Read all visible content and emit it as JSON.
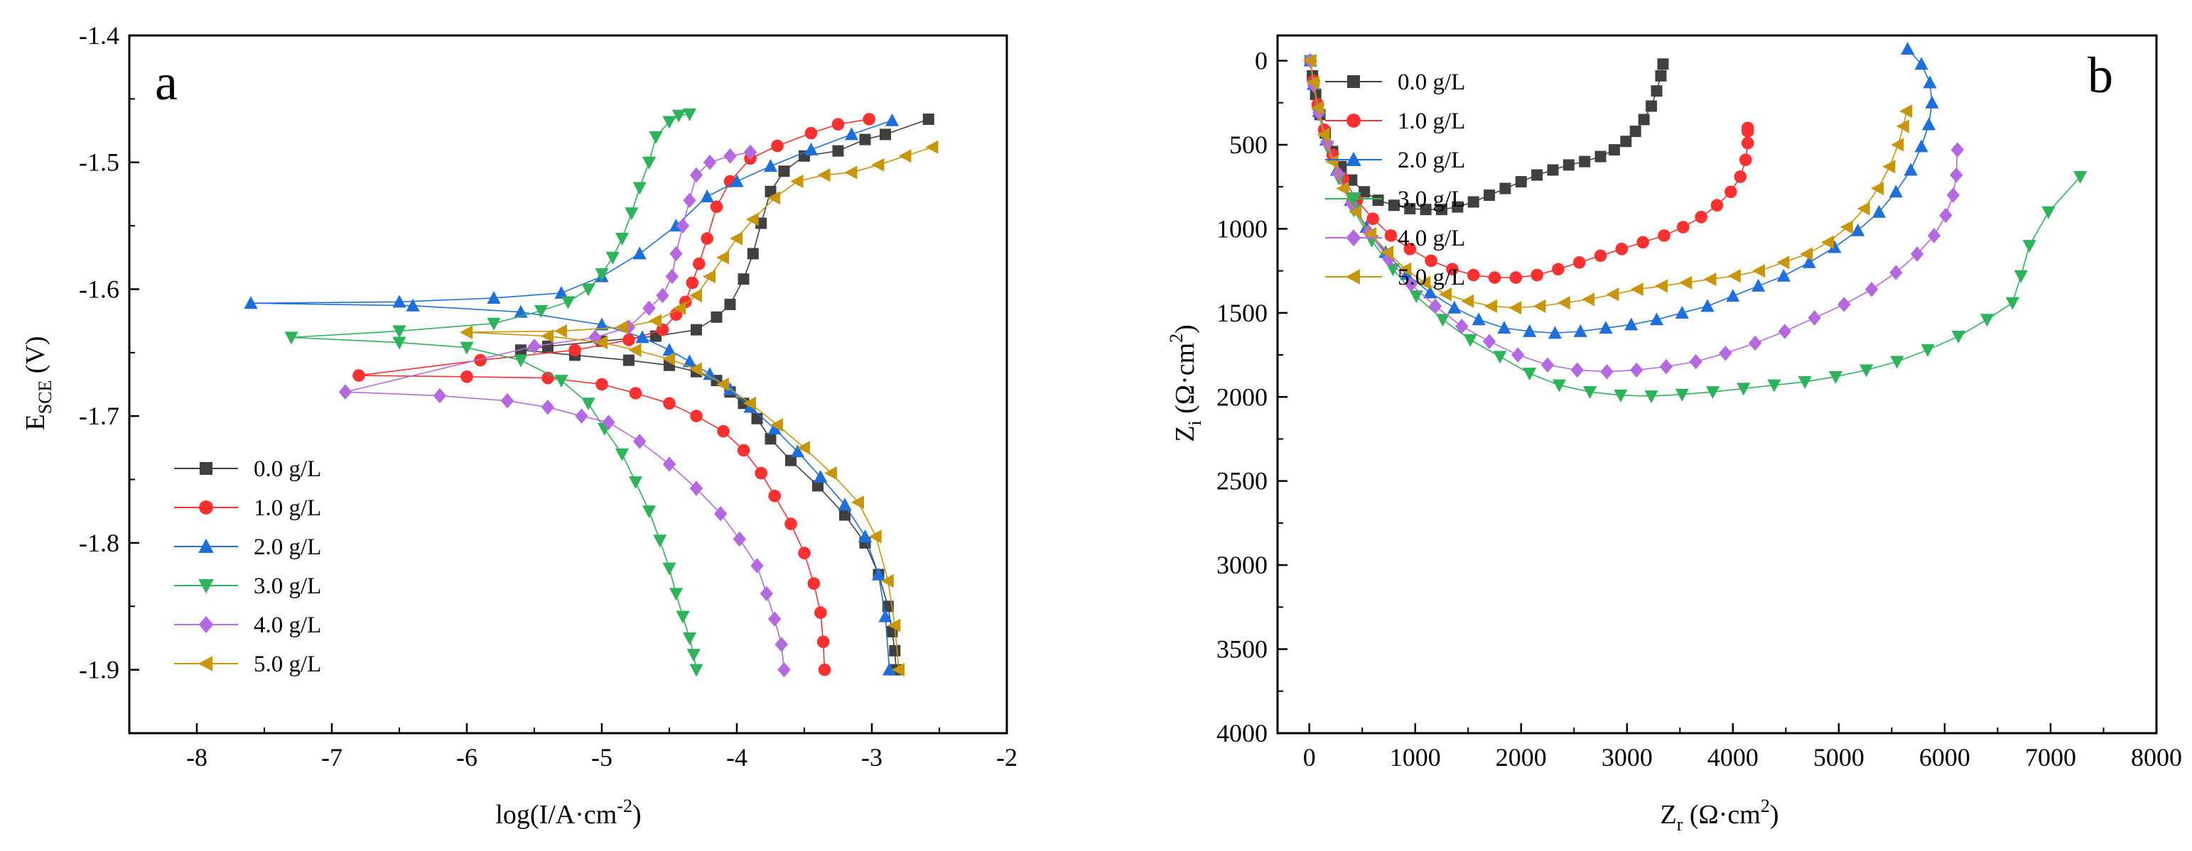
{
  "chart_data": [
    {
      "panel": "a",
      "type": "line",
      "title": "",
      "xlabel": "log(I/A·cm-2)",
      "ylabel": "ESCE (V)",
      "xlim": [
        -8.5,
        -2.0
      ],
      "ylim": [
        -1.4,
        -1.95
      ],
      "xticks": [
        "-8",
        "-7",
        "-6",
        "-5",
        "-4",
        "-3",
        "-2"
      ],
      "yticks": [
        "-1.4",
        "-1.5",
        "-1.6",
        "-1.7",
        "-1.8",
        "-1.9"
      ],
      "legend": "bottom-left",
      "series": [
        {
          "name": "0.0 g/L",
          "color": "#404040",
          "marker": "square",
          "x": [
            -2.58,
            -2.9,
            -3.05,
            -3.25,
            -3.5,
            -3.65,
            -3.75,
            -3.82,
            -3.88,
            -3.95,
            -4.05,
            -4.15,
            -4.3,
            -4.6,
            -5.0,
            -5.4,
            -5.6,
            -5.2,
            -4.8,
            -4.5,
            -4.3,
            -4.15,
            -4.05,
            -3.95,
            -3.85,
            -3.75,
            -3.6,
            -3.4,
            -3.2,
            -3.05,
            -2.95,
            -2.88,
            -2.85,
            -2.83,
            -2.82
          ],
          "y": [
            -1.466,
            -1.478,
            -1.482,
            -1.491,
            -1.495,
            -1.507,
            -1.523,
            -1.548,
            -1.572,
            -1.592,
            -1.612,
            -1.622,
            -1.632,
            -1.637,
            -1.641,
            -1.645,
            -1.648,
            -1.652,
            -1.656,
            -1.66,
            -1.665,
            -1.672,
            -1.681,
            -1.69,
            -1.702,
            -1.718,
            -1.735,
            -1.755,
            -1.778,
            -1.8,
            -1.825,
            -1.85,
            -1.87,
            -1.885,
            -1.9
          ]
        },
        {
          "name": "1.0 g/L",
          "color": "#ff3030",
          "marker": "circle",
          "x": [
            -3.02,
            -3.25,
            -3.45,
            -3.7,
            -3.9,
            -4.05,
            -4.15,
            -4.22,
            -4.28,
            -4.33,
            -4.38,
            -4.45,
            -4.55,
            -4.8,
            -5.2,
            -5.9,
            -6.8,
            -6.0,
            -5.4,
            -5.0,
            -4.75,
            -4.5,
            -4.3,
            -4.1,
            -3.95,
            -3.82,
            -3.72,
            -3.6,
            -3.5,
            -3.43,
            -3.38,
            -3.36,
            -3.35
          ],
          "y": [
            -1.466,
            -1.47,
            -1.477,
            -1.487,
            -1.497,
            -1.515,
            -1.535,
            -1.56,
            -1.58,
            -1.595,
            -1.61,
            -1.62,
            -1.632,
            -1.64,
            -1.648,
            -1.656,
            -1.668,
            -1.669,
            -1.67,
            -1.675,
            -1.682,
            -1.69,
            -1.7,
            -1.712,
            -1.727,
            -1.745,
            -1.763,
            -1.785,
            -1.808,
            -1.832,
            -1.855,
            -1.878,
            -1.9
          ]
        },
        {
          "name": "2.0 g/L",
          "color": "#1e6fd9",
          "marker": "triangle-up",
          "x": [
            -2.85,
            -3.15,
            -3.45,
            -3.75,
            -4.0,
            -4.22,
            -4.45,
            -4.72,
            -5.0,
            -5.3,
            -5.8,
            -6.5,
            -7.6,
            -6.4,
            -5.6,
            -5.0,
            -4.7,
            -4.5,
            -4.35,
            -4.2,
            -4.05,
            -3.9,
            -3.72,
            -3.55,
            -3.38,
            -3.2,
            -3.05,
            -2.95,
            -2.9,
            -2.87
          ],
          "y": [
            -1.467,
            -1.478,
            -1.49,
            -1.503,
            -1.515,
            -1.527,
            -1.55,
            -1.572,
            -1.59,
            -1.603,
            -1.607,
            -1.61,
            -1.611,
            -1.613,
            -1.618,
            -1.628,
            -1.638,
            -1.648,
            -1.657,
            -1.667,
            -1.679,
            -1.693,
            -1.71,
            -1.728,
            -1.748,
            -1.77,
            -1.795,
            -1.825,
            -1.858,
            -1.9
          ]
        },
        {
          "name": "3.0 g/L",
          "color": "#2db35a",
          "marker": "triangle-down",
          "x": [
            -4.35,
            -4.43,
            -4.5,
            -4.6,
            -4.65,
            -4.72,
            -4.78,
            -4.85,
            -4.92,
            -5.0,
            -5.1,
            -5.25,
            -5.45,
            -5.8,
            -6.5,
            -7.3,
            -6.5,
            -6.0,
            -5.6,
            -5.3,
            -5.1,
            -4.98,
            -4.85,
            -4.75,
            -4.65,
            -4.57,
            -4.5,
            -4.45,
            -4.4,
            -4.35,
            -4.32,
            -4.3
          ],
          "y": [
            -1.462,
            -1.463,
            -1.468,
            -1.48,
            -1.5,
            -1.52,
            -1.54,
            -1.56,
            -1.575,
            -1.588,
            -1.6,
            -1.61,
            -1.617,
            -1.627,
            -1.633,
            -1.638,
            -1.642,
            -1.646,
            -1.656,
            -1.672,
            -1.69,
            -1.71,
            -1.73,
            -1.752,
            -1.775,
            -1.798,
            -1.82,
            -1.84,
            -1.858,
            -1.875,
            -1.888,
            -1.9
          ]
        },
        {
          "name": "4.0 g/L",
          "color": "#b569e0",
          "marker": "diamond",
          "x": [
            -3.9,
            -4.05,
            -4.2,
            -4.3,
            -4.35,
            -4.4,
            -4.45,
            -4.48,
            -4.55,
            -4.65,
            -4.8,
            -5.05,
            -5.5,
            -6.9,
            -6.2,
            -5.7,
            -5.4,
            -5.15,
            -4.95,
            -4.72,
            -4.5,
            -4.3,
            -4.12,
            -3.98,
            -3.85,
            -3.78,
            -3.72,
            -3.67,
            -3.65
          ],
          "y": [
            -1.492,
            -1.495,
            -1.5,
            -1.51,
            -1.53,
            -1.55,
            -1.572,
            -1.59,
            -1.605,
            -1.615,
            -1.63,
            -1.638,
            -1.645,
            -1.681,
            -1.684,
            -1.688,
            -1.693,
            -1.7,
            -1.705,
            -1.72,
            -1.738,
            -1.757,
            -1.777,
            -1.797,
            -1.818,
            -1.84,
            -1.86,
            -1.88,
            -1.9
          ]
        },
        {
          "name": "5.0 g/L",
          "color": "#c8960a",
          "marker": "triangle-left",
          "x": [
            -2.55,
            -2.75,
            -2.95,
            -3.15,
            -3.35,
            -3.55,
            -3.72,
            -3.88,
            -4.0,
            -4.1,
            -4.2,
            -4.3,
            -4.42,
            -4.6,
            -4.85,
            -5.3,
            -6.0,
            -5.4,
            -5.0,
            -4.75,
            -4.5,
            -4.3,
            -4.1,
            -3.9,
            -3.7,
            -3.5,
            -3.3,
            -3.1,
            -2.97,
            -2.88,
            -2.83,
            -2.8
          ],
          "y": [
            -1.488,
            -1.495,
            -1.502,
            -1.508,
            -1.51,
            -1.515,
            -1.528,
            -1.545,
            -1.56,
            -1.575,
            -1.59,
            -1.605,
            -1.615,
            -1.625,
            -1.63,
            -1.633,
            -1.634,
            -1.637,
            -1.642,
            -1.648,
            -1.655,
            -1.663,
            -1.675,
            -1.69,
            -1.707,
            -1.725,
            -1.745,
            -1.768,
            -1.795,
            -1.83,
            -1.865,
            -1.9
          ]
        }
      ]
    },
    {
      "panel": "b",
      "type": "scatter",
      "title": "",
      "xlabel": "Zr (Ω·cm2)",
      "ylabel": "Zi (Ω·cm2)",
      "xlim": [
        -300,
        8000
      ],
      "ylim": [
        -150,
        4000
      ],
      "xticks": [
        "0",
        "1000",
        "2000",
        "3000",
        "4000",
        "5000",
        "6000",
        "7000",
        "8000"
      ],
      "yticks": [
        "0",
        "500",
        "1000",
        "1500",
        "2000",
        "2500",
        "3000",
        "3500",
        "4000"
      ],
      "legend": "top-left",
      "series": [
        {
          "name": "0.0 g/L",
          "color": "#404040",
          "marker": "square",
          "x": [
            10,
            30,
            60,
            100,
            150,
            220,
            300,
            400,
            520,
            650,
            800,
            950,
            1100,
            1250,
            1400,
            1550,
            1700,
            1850,
            2000,
            2150,
            2300,
            2450,
            2600,
            2750,
            2880,
            2990,
            3080,
            3160,
            3230,
            3280,
            3320,
            3340
          ],
          "y": [
            0,
            90,
            200,
            320,
            430,
            540,
            630,
            710,
            780,
            830,
            860,
            880,
            885,
            885,
            870,
            840,
            800,
            760,
            720,
            680,
            650,
            620,
            600,
            570,
            530,
            480,
            420,
            350,
            270,
            180,
            90,
            20
          ]
        },
        {
          "name": "1.0 g/L",
          "color": "#ff3030",
          "marker": "circle",
          "x": [
            10,
            40,
            80,
            140,
            220,
            320,
            450,
            600,
            770,
            950,
            1150,
            1350,
            1550,
            1750,
            1950,
            2150,
            2350,
            2550,
            2750,
            2950,
            3150,
            3350,
            3530,
            3700,
            3850,
            3980,
            4070,
            4120,
            4140,
            4140,
            4140
          ],
          "y": [
            0,
            120,
            260,
            410,
            560,
            700,
            830,
            940,
            1040,
            1120,
            1190,
            1240,
            1275,
            1290,
            1290,
            1275,
            1240,
            1200,
            1160,
            1120,
            1080,
            1040,
            990,
            930,
            860,
            780,
            690,
            590,
            490,
            420,
            400
          ]
        },
        {
          "name": "2.0 g/L",
          "color": "#1e6fd9",
          "marker": "triangle-up",
          "x": [
            10,
            40,
            90,
            160,
            260,
            390,
            540,
            720,
            920,
            1140,
            1370,
            1600,
            1840,
            2080,
            2320,
            2560,
            2800,
            3040,
            3280,
            3520,
            3760,
            4000,
            4240,
            4480,
            4720,
            4960,
            5180,
            5380,
            5540,
            5680,
            5780,
            5850,
            5880,
            5860,
            5780,
            5650
          ],
          "y": [
            0,
            140,
            300,
            470,
            650,
            830,
            990,
            1140,
            1270,
            1380,
            1470,
            1540,
            1590,
            1610,
            1620,
            1610,
            1590,
            1570,
            1540,
            1500,
            1460,
            1400,
            1340,
            1280,
            1200,
            1110,
            1010,
            900,
            780,
            650,
            510,
            380,
            250,
            130,
            20,
            -70
          ]
        },
        {
          "name": "3.0 g/L",
          "color": "#2db35a",
          "marker": "triangle-down",
          "x": [
            10,
            40,
            90,
            170,
            280,
            420,
            590,
            790,
            1010,
            1260,
            1520,
            1800,
            2080,
            2360,
            2650,
            2940,
            3230,
            3520,
            3810,
            4100,
            4390,
            4680,
            4970,
            5260,
            5550,
            5840,
            6130,
            6400,
            6640,
            6720,
            6800,
            6980,
            7280
          ],
          "y": [
            0,
            150,
            320,
            510,
            700,
            890,
            1070,
            1240,
            1400,
            1540,
            1660,
            1760,
            1860,
            1930,
            1970,
            1990,
            1995,
            1985,
            1970,
            1950,
            1930,
            1910,
            1880,
            1840,
            1790,
            1720,
            1640,
            1540,
            1440,
            1280,
            1100,
            900,
            690
          ]
        },
        {
          "name": "4.0 g/L",
          "color": "#b569e0",
          "marker": "diamond",
          "x": [
            10,
            40,
            90,
            170,
            270,
            400,
            560,
            750,
            960,
            1190,
            1440,
            1700,
            1970,
            2250,
            2530,
            2810,
            3090,
            3370,
            3650,
            3930,
            4210,
            4490,
            4770,
            5050,
            5310,
            5540,
            5740,
            5900,
            6010,
            6080,
            6110,
            6120
          ],
          "y": [
            0,
            145,
            310,
            490,
            670,
            850,
            1020,
            1180,
            1330,
            1460,
            1580,
            1670,
            1750,
            1810,
            1840,
            1850,
            1840,
            1820,
            1790,
            1740,
            1680,
            1610,
            1530,
            1450,
            1360,
            1260,
            1150,
            1040,
            920,
            800,
            680,
            530
          ]
        },
        {
          "name": "5.0 g/L",
          "color": "#c8960a",
          "marker": "triangle-left",
          "x": [
            10,
            40,
            80,
            140,
            220,
            320,
            440,
            580,
            740,
            910,
            1090,
            1290,
            1500,
            1720,
            1950,
            2180,
            2410,
            2640,
            2870,
            3100,
            3330,
            3560,
            3790,
            4020,
            4250,
            4480,
            4700,
            4900,
            5080,
            5240,
            5370,
            5480,
            5560,
            5610,
            5640
          ],
          "y": [
            0,
            130,
            280,
            440,
            600,
            760,
            900,
            1030,
            1140,
            1240,
            1320,
            1390,
            1430,
            1460,
            1470,
            1460,
            1440,
            1420,
            1390,
            1360,
            1340,
            1320,
            1300,
            1280,
            1250,
            1200,
            1150,
            1080,
            990,
            880,
            760,
            630,
            500,
            390,
            300
          ]
        }
      ]
    }
  ]
}
